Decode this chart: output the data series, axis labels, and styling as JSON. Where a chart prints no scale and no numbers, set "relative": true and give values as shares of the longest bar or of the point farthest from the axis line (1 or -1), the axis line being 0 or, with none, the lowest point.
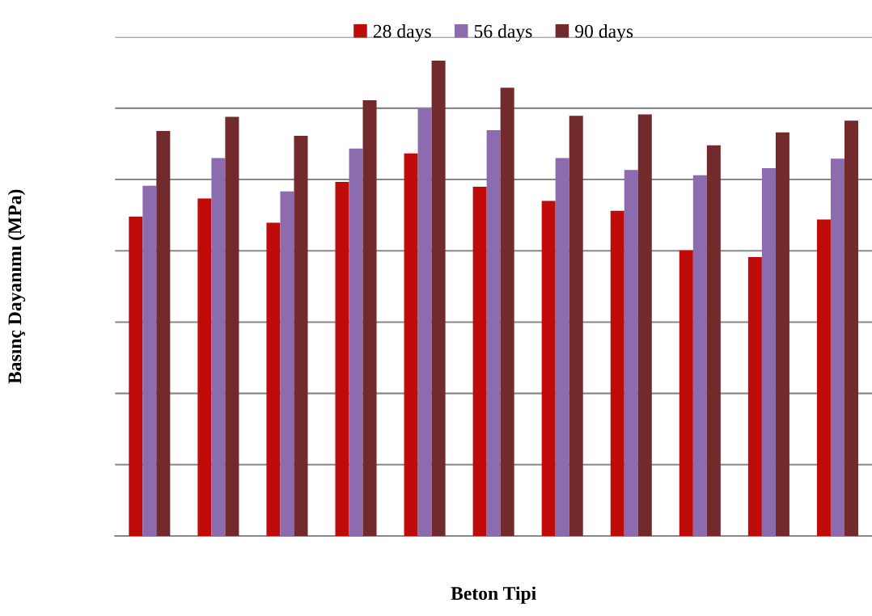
{
  "chart_data": {
    "type": "bar",
    "relative": true,
    "xlabel": "Beton Tipi",
    "ylabel": "Basınç Dayanımı (MPa)",
    "categories": [
      null,
      null,
      null,
      null,
      null,
      null,
      null,
      null,
      null,
      null,
      null
    ],
    "series": [
      {
        "name": "28 days",
        "color": "#c00b0b",
        "values": [
          0.672,
          0.71,
          0.659,
          0.745,
          0.805,
          0.735,
          0.705,
          0.684,
          0.601,
          0.587,
          0.666
        ]
      },
      {
        "name": "56 days",
        "color": "#8c6bae",
        "values": [
          0.737,
          0.795,
          0.725,
          0.815,
          0.899,
          0.854,
          0.795,
          0.77,
          0.759,
          0.774,
          0.794
        ]
      },
      {
        "name": "90 days",
        "color": "#722a2c",
        "values": [
          0.852,
          0.882,
          0.842,
          0.917,
          1,
          0.943,
          0.884,
          0.887,
          0.822,
          0.849,
          0.874
        ]
      }
    ],
    "grid": "y",
    "legend": "top",
    "tick_labels": false
  }
}
